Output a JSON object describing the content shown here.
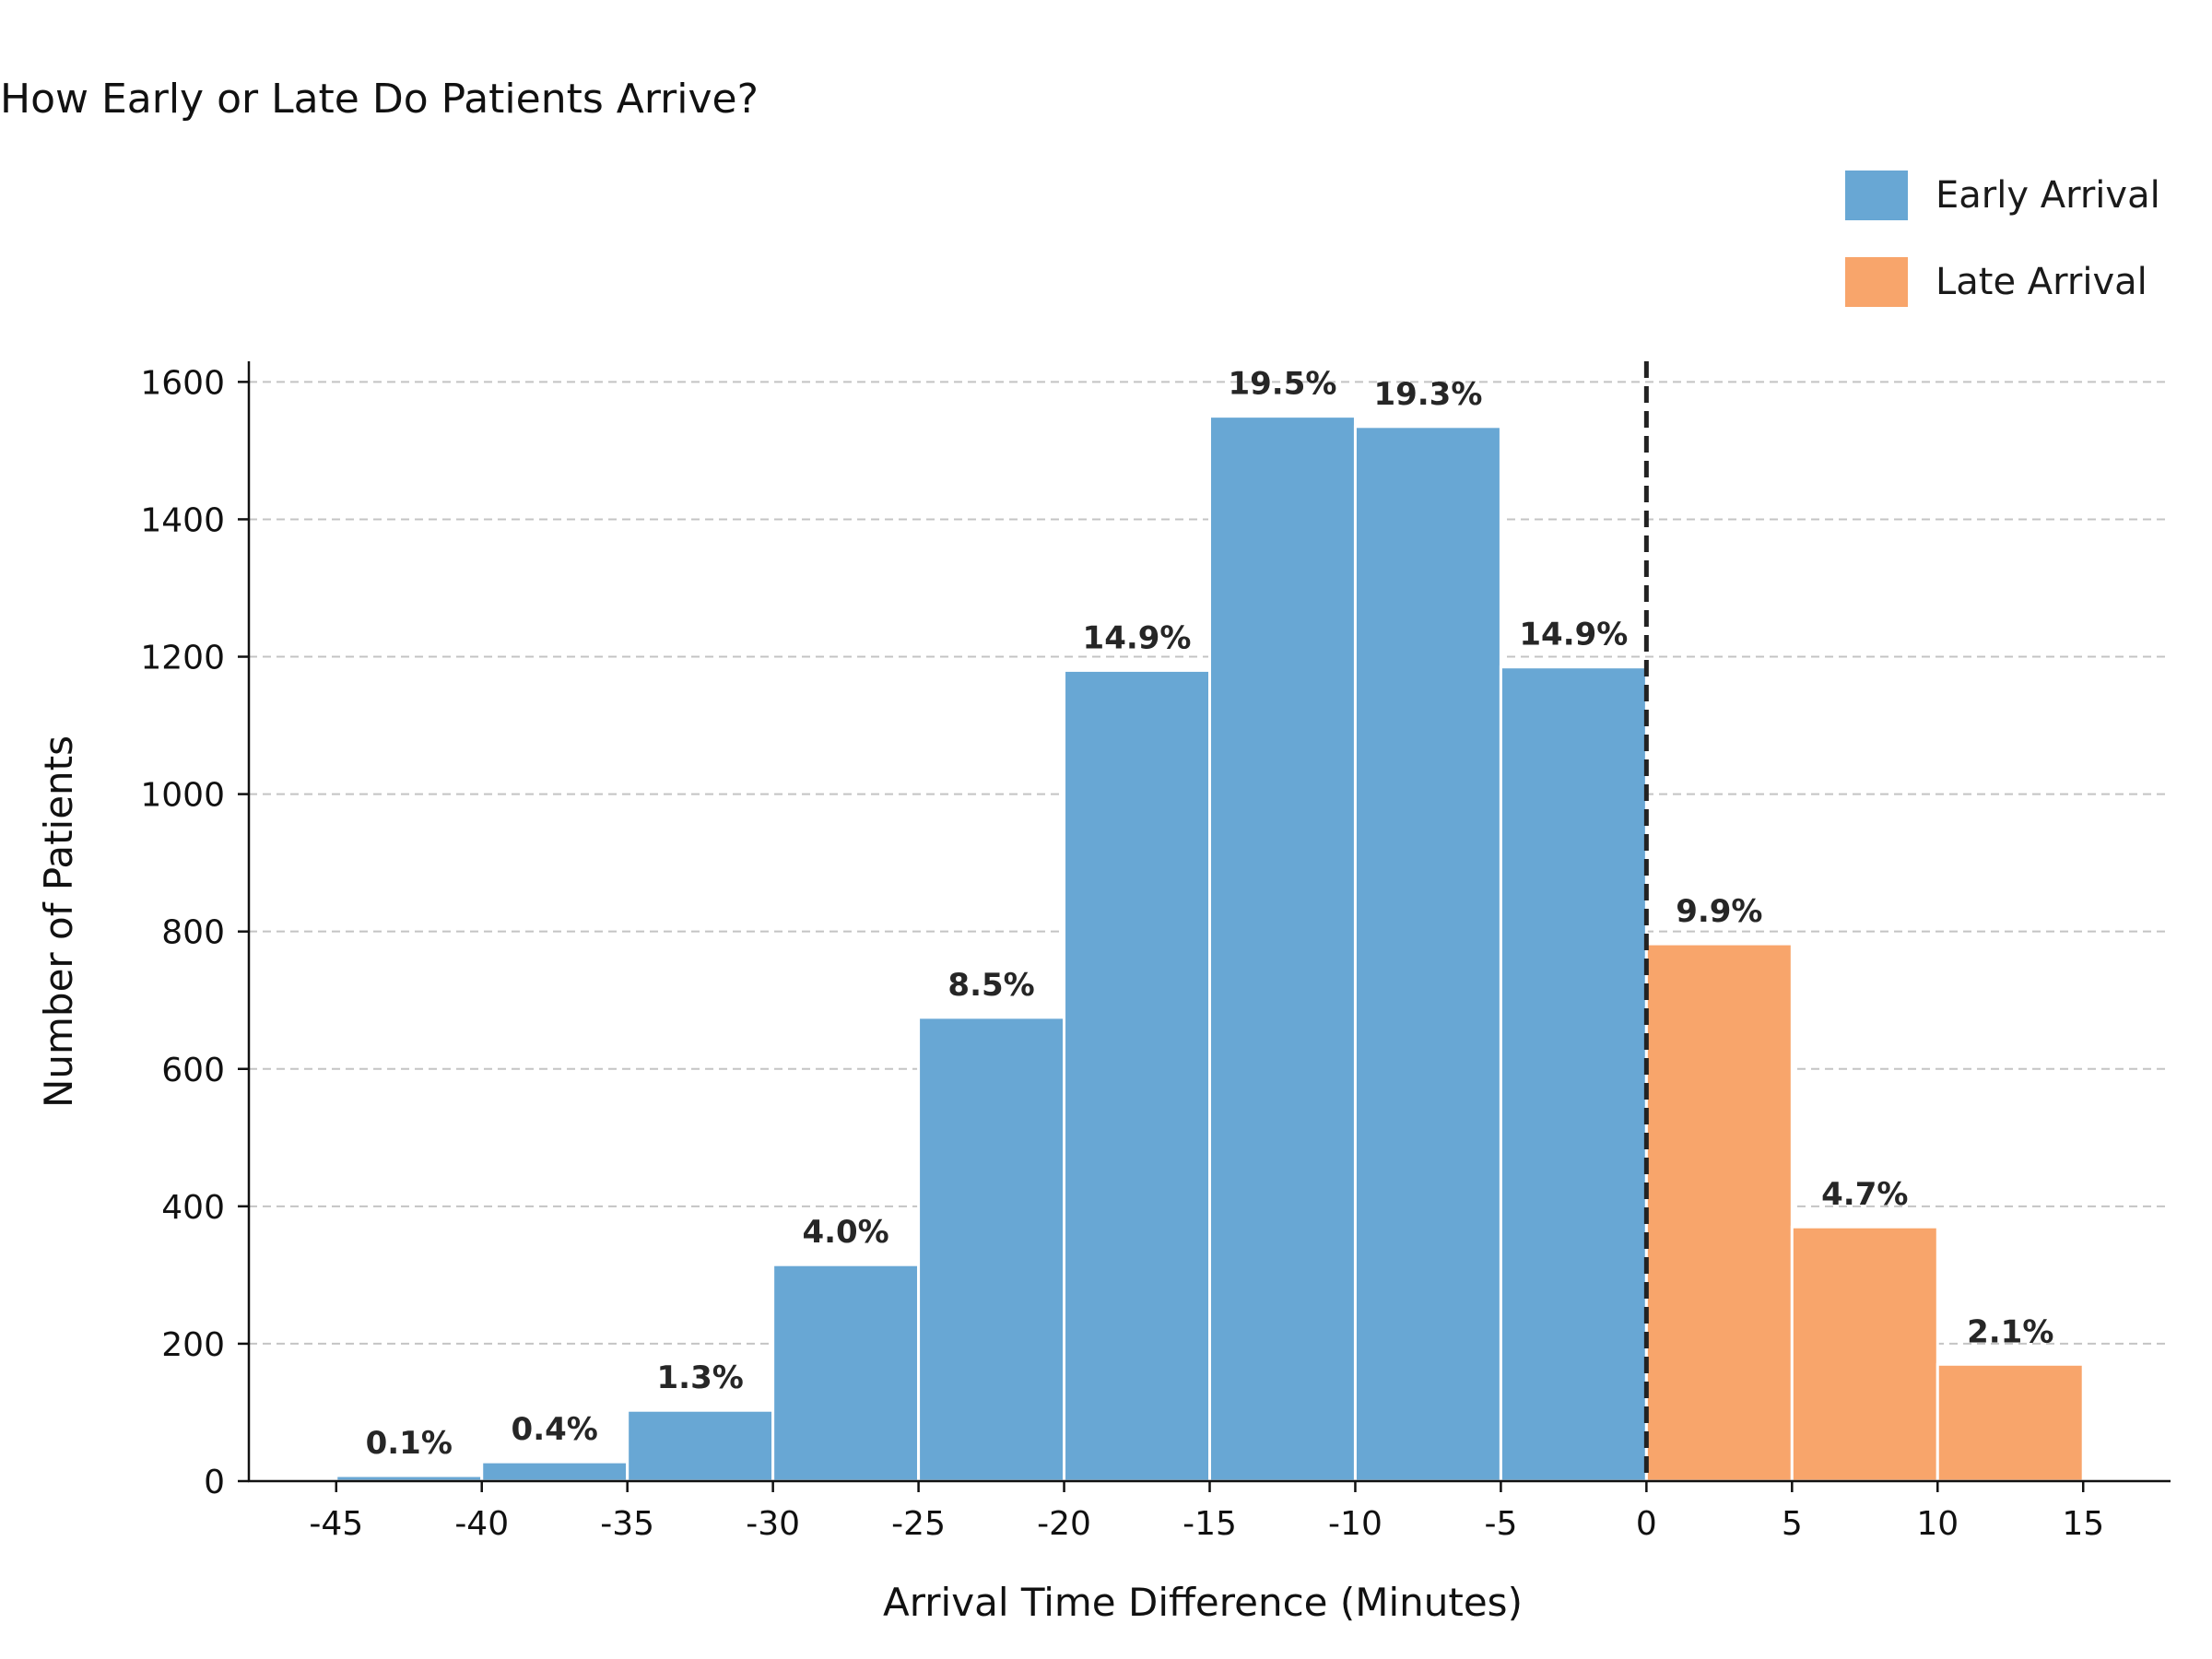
{
  "chart_data": {
    "type": "bar",
    "title": "How Early or Late Do Patients Arrive?",
    "xlabel": "Arrival Time Difference (Minutes)",
    "ylabel": "Number of Patients",
    "xlim": [
      -48,
      18
    ],
    "ylim": [
      0,
      1630
    ],
    "x_ticks": [
      -45,
      -40,
      -35,
      -30,
      -25,
      -20,
      -15,
      -10,
      -5,
      0,
      5,
      10,
      15
    ],
    "x_tick_labels": [
      "-45",
      "-40",
      "-35",
      "-30",
      "-25",
      "-20",
      "-15",
      "-10",
      "-5",
      "0",
      "5",
      "10",
      "15"
    ],
    "y_ticks": [
      0,
      200,
      400,
      600,
      800,
      1000,
      1200,
      1400,
      1600
    ],
    "y_tick_labels": [
      "0",
      "200",
      "400",
      "600",
      "800",
      "1000",
      "1200",
      "1400",
      "1600"
    ],
    "grid": "y-dashed",
    "legend_position": "top-right",
    "reference_line_x": 0,
    "series": [
      {
        "name": "Early Arrival",
        "color": "#68a7d4",
        "bins": [
          {
            "x0": -45,
            "x1": -40,
            "value": 8,
            "label": "0.1%"
          },
          {
            "x0": -40,
            "x1": -35,
            "value": 28,
            "label": "0.4%"
          },
          {
            "x0": -35,
            "x1": -30,
            "value": 103,
            "label": "1.3%"
          },
          {
            "x0": -30,
            "x1": -25,
            "value": 315,
            "label": "4.0%"
          },
          {
            "x0": -25,
            "x1": -20,
            "value": 675,
            "label": "8.5%"
          },
          {
            "x0": -20,
            "x1": -15,
            "value": 1180,
            "label": "14.9%"
          },
          {
            "x0": -15,
            "x1": -10,
            "value": 1550,
            "label": "19.5%"
          },
          {
            "x0": -10,
            "x1": -5,
            "value": 1535,
            "label": "19.3%"
          },
          {
            "x0": -5,
            "x1": 0,
            "value": 1185,
            "label": "14.9%"
          }
        ]
      },
      {
        "name": "Late Arrival",
        "color": "#f8a56b",
        "bins": [
          {
            "x0": 0,
            "x1": 5,
            "value": 782,
            "label": "9.9%"
          },
          {
            "x0": 5,
            "x1": 10,
            "value": 370,
            "label": "4.7%"
          },
          {
            "x0": 10,
            "x1": 15,
            "value": 170,
            "label": "2.1%"
          }
        ]
      }
    ]
  }
}
